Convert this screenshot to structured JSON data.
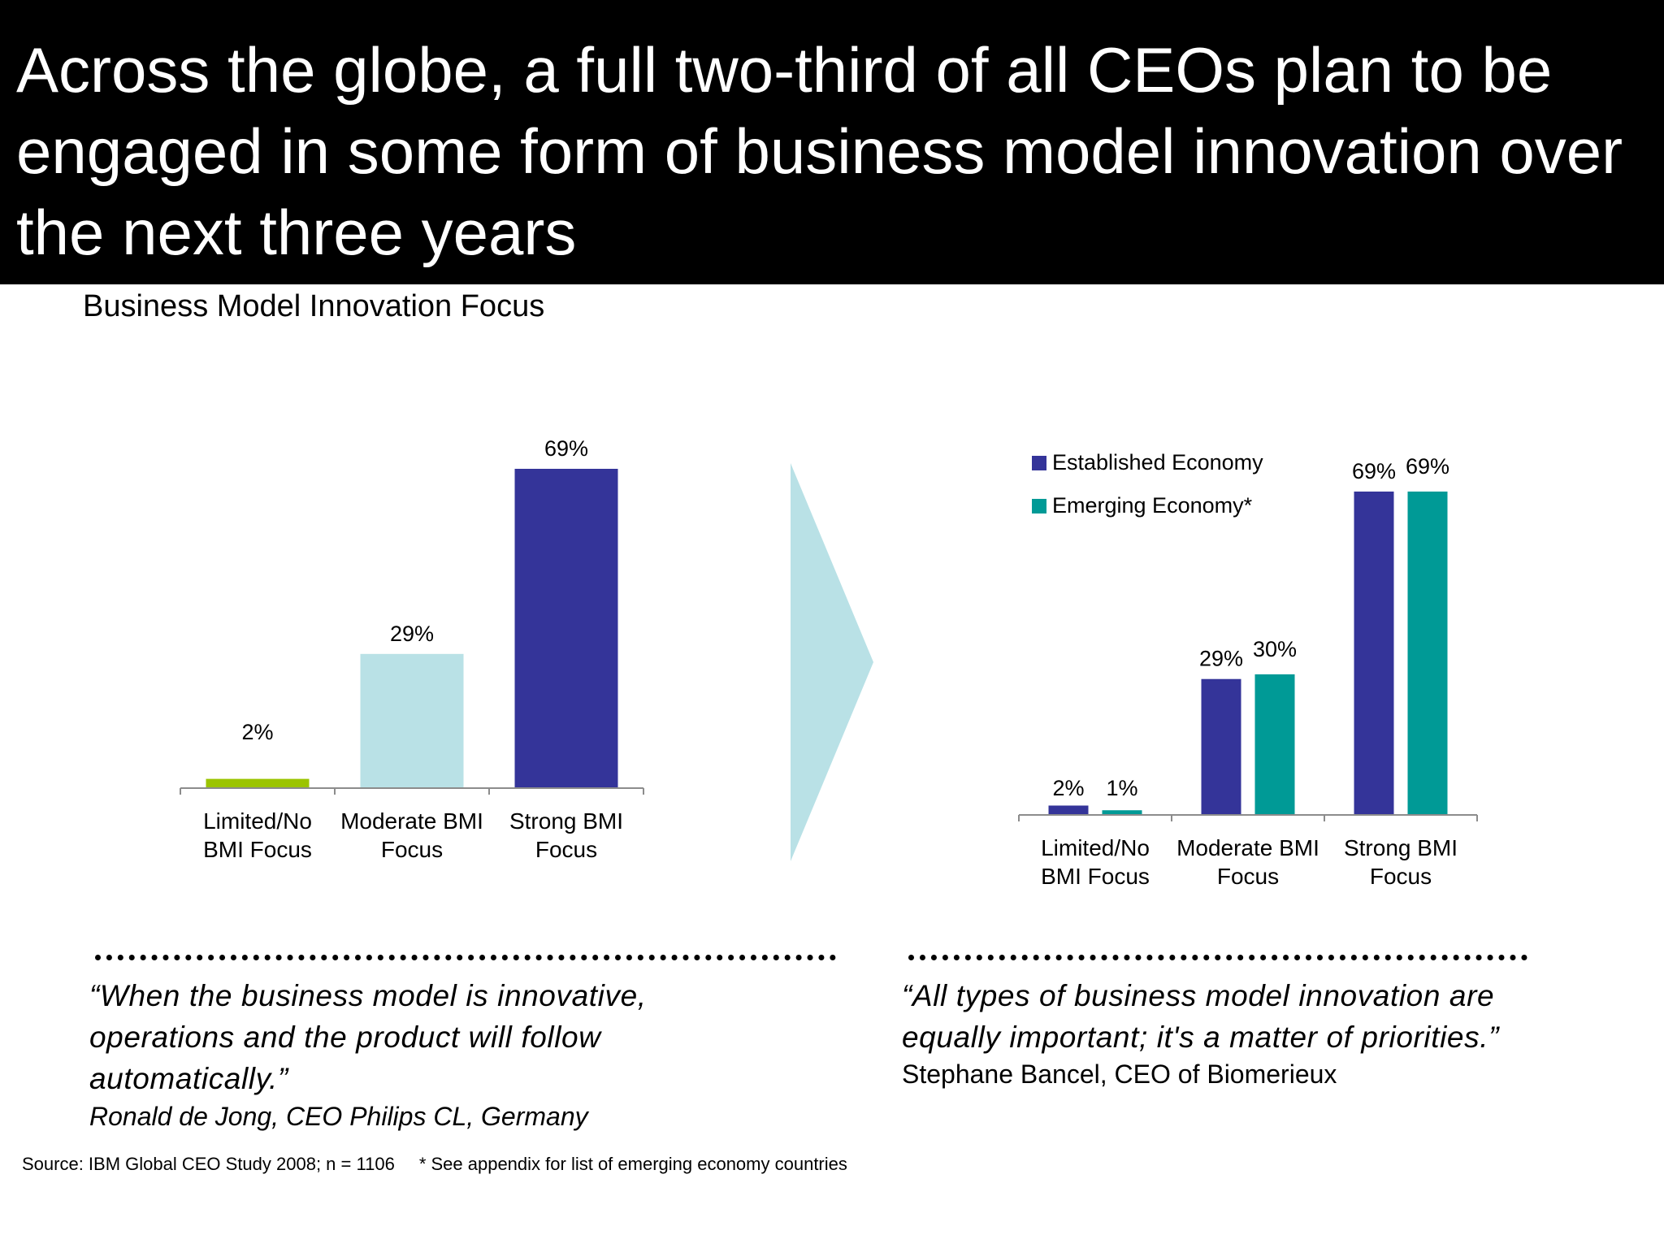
{
  "header": {
    "headline": "Across the globe, a full two-third of all CEOs plan to be engaged in some form of business model innovation over the next three years"
  },
  "section_title": "Business Model Innovation Focus",
  "chart_data": [
    {
      "type": "bar",
      "title": "",
      "categories": [
        [
          "Limited/No",
          "BMI Focus"
        ],
        [
          "Moderate BMI",
          "Focus"
        ],
        [
          "Strong BMI",
          "Focus"
        ]
      ],
      "values": [
        2,
        29,
        69
      ],
      "value_labels": [
        "2%",
        "29%",
        "69%"
      ],
      "colors": [
        "#9bc400",
        "#b9e1e6",
        "#343499"
      ],
      "ylim": [
        0,
        69
      ],
      "xlabel": "",
      "ylabel": ""
    },
    {
      "type": "bar",
      "title": "",
      "categories": [
        [
          "Limited/No",
          "BMI Focus"
        ],
        [
          "Moderate BMI",
          "Focus"
        ],
        [
          "Strong BMI",
          "Focus"
        ]
      ],
      "series": [
        {
          "name": "Established Economy",
          "values": [
            2,
            29,
            69
          ],
          "labels": [
            "2%",
            "29%",
            "69%"
          ],
          "color": "#343499"
        },
        {
          "name": "Emerging Economy*",
          "values": [
            1,
            30,
            69
          ],
          "labels": [
            "1%",
            "30%",
            "69%"
          ],
          "color": "#009a96"
        }
      ],
      "legend": "top-left",
      "ylim": [
        0,
        69
      ],
      "xlabel": "",
      "ylabel": ""
    }
  ],
  "arrow_color": "#b9e1e6",
  "quotes": [
    {
      "text_lines": [
        "“When the business model is innovative,",
        "operations and the product will follow",
        "automatically.”"
      ],
      "attribution": "Ronald de Jong, CEO Philips CL, Germany"
    },
    {
      "text_lines": [
        "“All types of business model innovation are",
        "equally important; it's a matter of priorities.”"
      ],
      "attribution": "Stephane Bancel, CEO of Biomerieux"
    }
  ],
  "footer": {
    "source": "Source: IBM Global CEO Study 2008; n = 1106",
    "note": "* See appendix for list of emerging economy countries"
  }
}
